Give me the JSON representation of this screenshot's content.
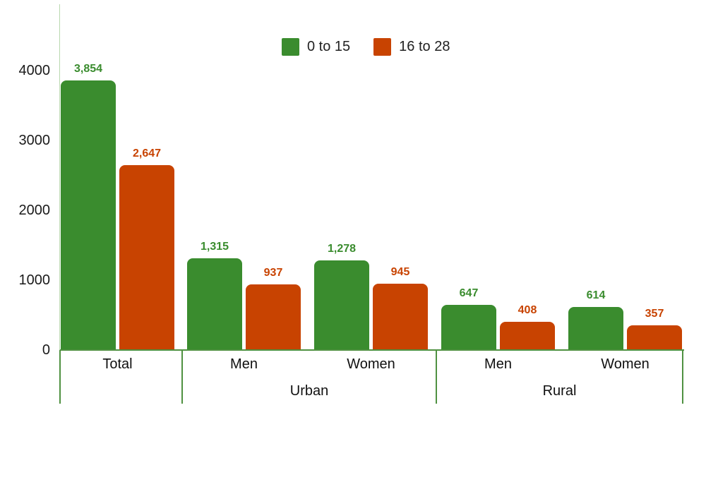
{
  "chart_data": {
    "type": "bar",
    "title": "",
    "legend_position": "top",
    "grid": "off",
    "categories": [
      "Total",
      "Men",
      "Women",
      "Men",
      "Women"
    ],
    "category_groups": [
      {
        "label": "",
        "categories": [
          "Total"
        ]
      },
      {
        "label": "Urban",
        "categories": [
          "Men",
          "Women"
        ]
      },
      {
        "label": "Rural",
        "categories": [
          "Men",
          "Women"
        ]
      }
    ],
    "series": [
      {
        "name": "0 to 15",
        "color": "#3a8c2e",
        "values": [
          3854,
          1315,
          1278,
          647,
          614
        ],
        "labels": [
          "3,854",
          "1,315",
          "1,278",
          "647",
          "614"
        ]
      },
      {
        "name": "16 to 28",
        "color": "#c84301",
        "values": [
          2647,
          937,
          945,
          408,
          357
        ],
        "labels": [
          "2,647",
          "937",
          "945",
          "408",
          "357"
        ]
      }
    ],
    "ylim": [
      0,
      4000
    ],
    "yticks": [
      4000,
      3000,
      2000,
      1000,
      0
    ]
  },
  "legend": {
    "items": [
      {
        "label": "0 to 15",
        "color": "#3a8c2e"
      },
      {
        "label": "16 to 28",
        "color": "#c84301"
      }
    ]
  },
  "colors": {
    "background": "#ffffff",
    "axis_line": "#4f9141",
    "y_axis_line": "#b9d8ae",
    "tick_text": "#1a1a1a",
    "category_text": "#101010",
    "legend_text": "#212121"
  }
}
